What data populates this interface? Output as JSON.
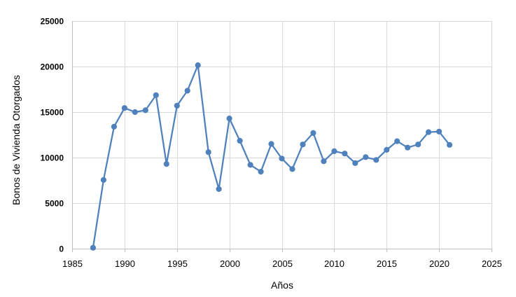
{
  "chart_data": {
    "type": "line",
    "title": "",
    "xlabel": "Años",
    "ylabel": "Bonos de Vivienda Otorgados",
    "xlim": [
      1985,
      2025
    ],
    "ylim": [
      0,
      25000
    ],
    "xticks": [
      1985,
      1990,
      1995,
      2000,
      2005,
      2010,
      2015,
      2020,
      2025
    ],
    "yticks": [
      0,
      5000,
      10000,
      15000,
      20000,
      25000
    ],
    "grid": true,
    "legend": "none",
    "series": [
      {
        "color": "#4f81bd",
        "marker": "circle",
        "x": [
          1987,
          1988,
          1989,
          1990,
          1991,
          1992,
          1993,
          1994,
          1995,
          1996,
          1997,
          1998,
          1999,
          2000,
          2001,
          2002,
          2003,
          2004,
          2005,
          2006,
          2007,
          2008,
          2009,
          2010,
          2011,
          2012,
          2013,
          2014,
          2015,
          2016,
          2017,
          2018,
          2019,
          2020,
          2021
        ],
        "y": [
          100,
          7550,
          13400,
          15450,
          15000,
          15200,
          16850,
          9300,
          15700,
          17350,
          20150,
          10600,
          6550,
          14300,
          11850,
          9200,
          8450,
          11500,
          9900,
          8750,
          11450,
          12700,
          9600,
          10700,
          10450,
          9400,
          10050,
          9750,
          10850,
          11800,
          11100,
          11450,
          12800,
          12850,
          11400
        ]
      }
    ]
  }
}
